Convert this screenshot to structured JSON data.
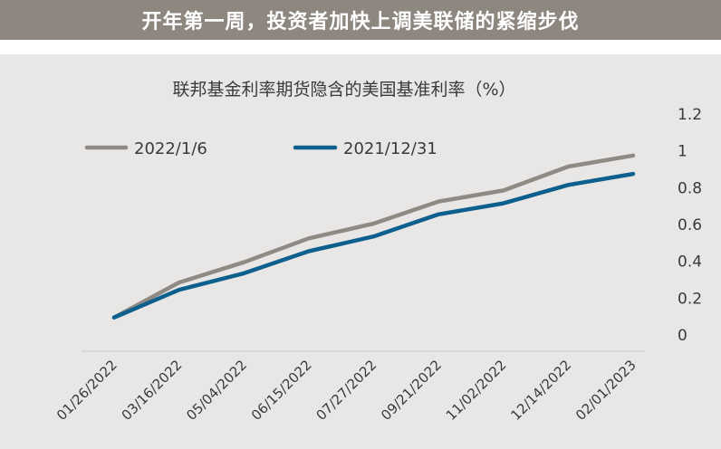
{
  "header": {
    "title": "开年第一周，投资者加快上调美联储的紧缩步伐"
  },
  "colors": {
    "banner_bg": "#8d8780",
    "panel_bg": "#e8e7e6",
    "series_gray": "#8f8a84",
    "series_blue": "#0d5f8e"
  },
  "chart_data": {
    "type": "line",
    "title": "联邦基金利率期货隐含的美国基准利率（%）",
    "xlabel": "",
    "ylabel": "",
    "x": [
      "01/26/2022",
      "03/16/2022",
      "05/04/2022",
      "06/15/2022",
      "07/27/2022",
      "09/21/2022",
      "11/02/2022",
      "12/14/2022",
      "02/01/2023"
    ],
    "ylim": [
      0,
      1.2
    ],
    "yticks": [
      "0",
      "0.2",
      "0.4",
      "0.6",
      "0.8",
      "1",
      "1.2"
    ],
    "y_axis_side": "right",
    "grid": false,
    "legend_position": "top-left",
    "series": [
      {
        "name": "2022/1/6",
        "color": "#8f8a84",
        "values": [
          0.09,
          0.28,
          0.39,
          0.52,
          0.6,
          0.72,
          0.78,
          0.91,
          0.97
        ]
      },
      {
        "name": "2021/12/31",
        "color": "#0d5f8e",
        "values": [
          0.09,
          0.24,
          0.33,
          0.45,
          0.53,
          0.65,
          0.71,
          0.81,
          0.87
        ]
      }
    ]
  }
}
